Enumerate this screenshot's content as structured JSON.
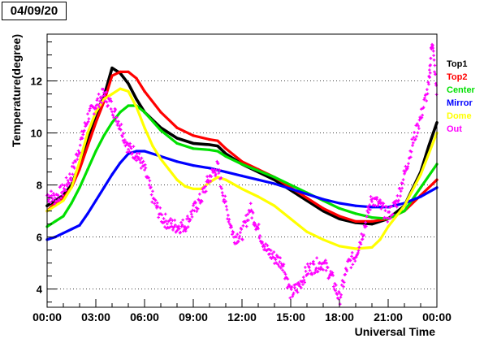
{
  "date_label": "04/09/20",
  "chart_data": {
    "type": "scatter",
    "title": "",
    "xlabel": "Universal Time",
    "ylabel": "Temperature(degree)",
    "x_unit": "hours UT",
    "xlim": [
      0,
      24
    ],
    "ylim": [
      3.3,
      13.8
    ],
    "x_ticks": [
      0,
      3,
      6,
      9,
      12,
      15,
      18,
      21,
      24
    ],
    "x_tick_labels": [
      "00:00",
      "03:00",
      "06:00",
      "09:00",
      "12:00",
      "15:00",
      "18:00",
      "21:00",
      "00:00"
    ],
    "y_ticks": [
      4,
      6,
      8,
      10,
      12
    ],
    "y_tick_labels": [
      "4",
      "6",
      "8",
      "10",
      "12"
    ],
    "grid": "horizontal dotted lines at y ticks",
    "legend_position": "right, outside plot",
    "series": [
      {
        "name": "Top1",
        "color": "#000000",
        "points": [
          [
            0,
            7.2
          ],
          [
            0.5,
            7.4
          ],
          [
            1,
            7.6
          ],
          [
            1.5,
            8.0
          ],
          [
            2,
            8.8
          ],
          [
            2.5,
            9.8
          ],
          [
            3,
            10.7
          ],
          [
            3.5,
            11.4
          ],
          [
            4,
            12.5
          ],
          [
            4.5,
            12.3
          ],
          [
            5,
            11.9
          ],
          [
            5.5,
            11.3
          ],
          [
            6,
            10.8
          ],
          [
            7,
            10.2
          ],
          [
            8,
            9.8
          ],
          [
            9,
            9.6
          ],
          [
            10,
            9.55
          ],
          [
            10.5,
            9.5
          ],
          [
            11,
            9.2
          ],
          [
            12,
            8.8
          ],
          [
            13,
            8.5
          ],
          [
            14,
            8.2
          ],
          [
            15,
            7.8
          ],
          [
            16,
            7.4
          ],
          [
            17,
            7.0
          ],
          [
            18,
            6.7
          ],
          [
            19,
            6.55
          ],
          [
            20,
            6.5
          ],
          [
            21,
            6.7
          ],
          [
            22,
            7.2
          ],
          [
            23,
            8.5
          ],
          [
            23.5,
            9.5
          ],
          [
            24,
            10.4
          ]
        ]
      },
      {
        "name": "Top2",
        "color": "#ff0000",
        "points": [
          [
            0,
            7.0
          ],
          [
            0.5,
            7.3
          ],
          [
            1,
            7.5
          ],
          [
            1.5,
            7.9
          ],
          [
            2,
            8.6
          ],
          [
            2.5,
            9.5
          ],
          [
            3,
            10.4
          ],
          [
            3.5,
            11.2
          ],
          [
            4,
            12.2
          ],
          [
            4.5,
            12.35
          ],
          [
            5,
            12.35
          ],
          [
            5.5,
            12.1
          ],
          [
            6,
            11.6
          ],
          [
            7,
            10.8
          ],
          [
            8,
            10.2
          ],
          [
            9,
            9.9
          ],
          [
            10,
            9.75
          ],
          [
            10.5,
            9.7
          ],
          [
            11,
            9.4
          ],
          [
            12,
            8.9
          ],
          [
            13,
            8.6
          ],
          [
            14,
            8.3
          ],
          [
            15,
            7.9
          ],
          [
            16,
            7.5
          ],
          [
            17,
            7.1
          ],
          [
            18,
            6.8
          ],
          [
            19,
            6.6
          ],
          [
            20,
            6.6
          ],
          [
            21,
            6.7
          ],
          [
            22,
            7.0
          ],
          [
            23,
            7.6
          ],
          [
            24,
            8.2
          ]
        ]
      },
      {
        "name": "Center",
        "color": "#00e000",
        "points": [
          [
            0,
            6.4
          ],
          [
            0.5,
            6.6
          ],
          [
            1,
            6.8
          ],
          [
            1.5,
            7.3
          ],
          [
            2,
            7.9
          ],
          [
            2.5,
            8.6
          ],
          [
            3,
            9.3
          ],
          [
            3.5,
            9.9
          ],
          [
            4,
            10.4
          ],
          [
            4.5,
            10.8
          ],
          [
            5,
            11.05
          ],
          [
            5.5,
            11.05
          ],
          [
            6,
            10.8
          ],
          [
            7,
            10.1
          ],
          [
            8,
            9.6
          ],
          [
            9,
            9.4
          ],
          [
            10,
            9.35
          ],
          [
            10.5,
            9.3
          ],
          [
            11,
            9.1
          ],
          [
            12,
            8.8
          ],
          [
            13,
            8.55
          ],
          [
            14,
            8.3
          ],
          [
            15,
            8.0
          ],
          [
            16,
            7.7
          ],
          [
            17,
            7.4
          ],
          [
            18,
            7.1
          ],
          [
            19,
            6.9
          ],
          [
            20,
            6.75
          ],
          [
            21,
            6.7
          ],
          [
            22,
            7.0
          ],
          [
            23,
            7.9
          ],
          [
            24,
            8.8
          ]
        ]
      },
      {
        "name": "Mirror",
        "color": "#0000ff",
        "points": [
          [
            0,
            5.9
          ],
          [
            0.5,
            6.0
          ],
          [
            1,
            6.15
          ],
          [
            1.5,
            6.3
          ],
          [
            2,
            6.45
          ],
          [
            2.5,
            6.9
          ],
          [
            3,
            7.4
          ],
          [
            3.5,
            7.9
          ],
          [
            4,
            8.4
          ],
          [
            4.5,
            8.85
          ],
          [
            5,
            9.2
          ],
          [
            5.5,
            9.3
          ],
          [
            6,
            9.3
          ],
          [
            7,
            9.1
          ],
          [
            8,
            8.9
          ],
          [
            9,
            8.75
          ],
          [
            10,
            8.65
          ],
          [
            11,
            8.5
          ],
          [
            12,
            8.35
          ],
          [
            13,
            8.2
          ],
          [
            14,
            8.05
          ],
          [
            15,
            7.85
          ],
          [
            16,
            7.65
          ],
          [
            17,
            7.45
          ],
          [
            18,
            7.3
          ],
          [
            19,
            7.2
          ],
          [
            20,
            7.15
          ],
          [
            21,
            7.15
          ],
          [
            22,
            7.3
          ],
          [
            23,
            7.55
          ],
          [
            24,
            7.9
          ]
        ]
      },
      {
        "name": "Dome",
        "color": "#ffff00",
        "points": [
          [
            0,
            7.0
          ],
          [
            0.5,
            7.2
          ],
          [
            1,
            7.4
          ],
          [
            1.5,
            7.9
          ],
          [
            2,
            8.9
          ],
          [
            2.5,
            10.0
          ],
          [
            3,
            10.8
          ],
          [
            3.5,
            11.3
          ],
          [
            4,
            11.5
          ],
          [
            4.5,
            11.7
          ],
          [
            5,
            11.6
          ],
          [
            5.5,
            11.0
          ],
          [
            6,
            10.2
          ],
          [
            6.5,
            9.5
          ],
          [
            7,
            9.0
          ],
          [
            7.5,
            8.6
          ],
          [
            8,
            8.2
          ],
          [
            8.5,
            7.95
          ],
          [
            9,
            7.85
          ],
          [
            9.5,
            7.85
          ],
          [
            10,
            8.1
          ],
          [
            10.5,
            8.3
          ],
          [
            11,
            8.2
          ],
          [
            12,
            7.85
          ],
          [
            13,
            7.55
          ],
          [
            14,
            7.2
          ],
          [
            15,
            6.7
          ],
          [
            16,
            6.2
          ],
          [
            17,
            5.9
          ],
          [
            18,
            5.65
          ],
          [
            19,
            5.55
          ],
          [
            20,
            5.6
          ],
          [
            20.5,
            5.9
          ],
          [
            21,
            6.4
          ],
          [
            22,
            7.2
          ],
          [
            23,
            8.4
          ],
          [
            24,
            10.0
          ]
        ]
      },
      {
        "name": "Out",
        "color": "#ff00ff",
        "points": [
          [
            0,
            7.6
          ],
          [
            0.5,
            7.5
          ],
          [
            1,
            7.8
          ],
          [
            1.5,
            8.4
          ],
          [
            2,
            9.5
          ],
          [
            2.5,
            10.6
          ],
          [
            3,
            11.1
          ],
          [
            3.5,
            11.5
          ],
          [
            4,
            11.0
          ],
          [
            4.5,
            10.3
          ],
          [
            5,
            9.4
          ],
          [
            5.5,
            9.2
          ],
          [
            6,
            8.6
          ],
          [
            6.5,
            7.5
          ],
          [
            7,
            6.8
          ],
          [
            7.5,
            6.5
          ],
          [
            8,
            6.4
          ],
          [
            8.5,
            6.45
          ],
          [
            9,
            7.0
          ],
          [
            9.5,
            7.5
          ],
          [
            10,
            8.3
          ],
          [
            10.5,
            8.7
          ],
          [
            11,
            7.2
          ],
          [
            11.5,
            6.0
          ],
          [
            12,
            6.1
          ],
          [
            12.5,
            7.1
          ],
          [
            13,
            6.3
          ],
          [
            13.5,
            5.5
          ],
          [
            14,
            5.2
          ],
          [
            14.5,
            5.0
          ],
          [
            15,
            3.8
          ],
          [
            15.5,
            4.1
          ],
          [
            16,
            4.7
          ],
          [
            16.5,
            4.9
          ],
          [
            17,
            5.0
          ],
          [
            17.5,
            4.5
          ],
          [
            18,
            3.6
          ],
          [
            18.5,
            4.9
          ],
          [
            19,
            5.3
          ],
          [
            19.5,
            6.3
          ],
          [
            20,
            7.5
          ],
          [
            20.5,
            7.2
          ],
          [
            21,
            6.8
          ],
          [
            21.5,
            7.3
          ],
          [
            22,
            8.4
          ],
          [
            22.5,
            9.6
          ],
          [
            23,
            10.6
          ],
          [
            23.5,
            11.8
          ],
          [
            23.7,
            13.6
          ],
          [
            24,
            11.5
          ]
        ]
      }
    ]
  }
}
